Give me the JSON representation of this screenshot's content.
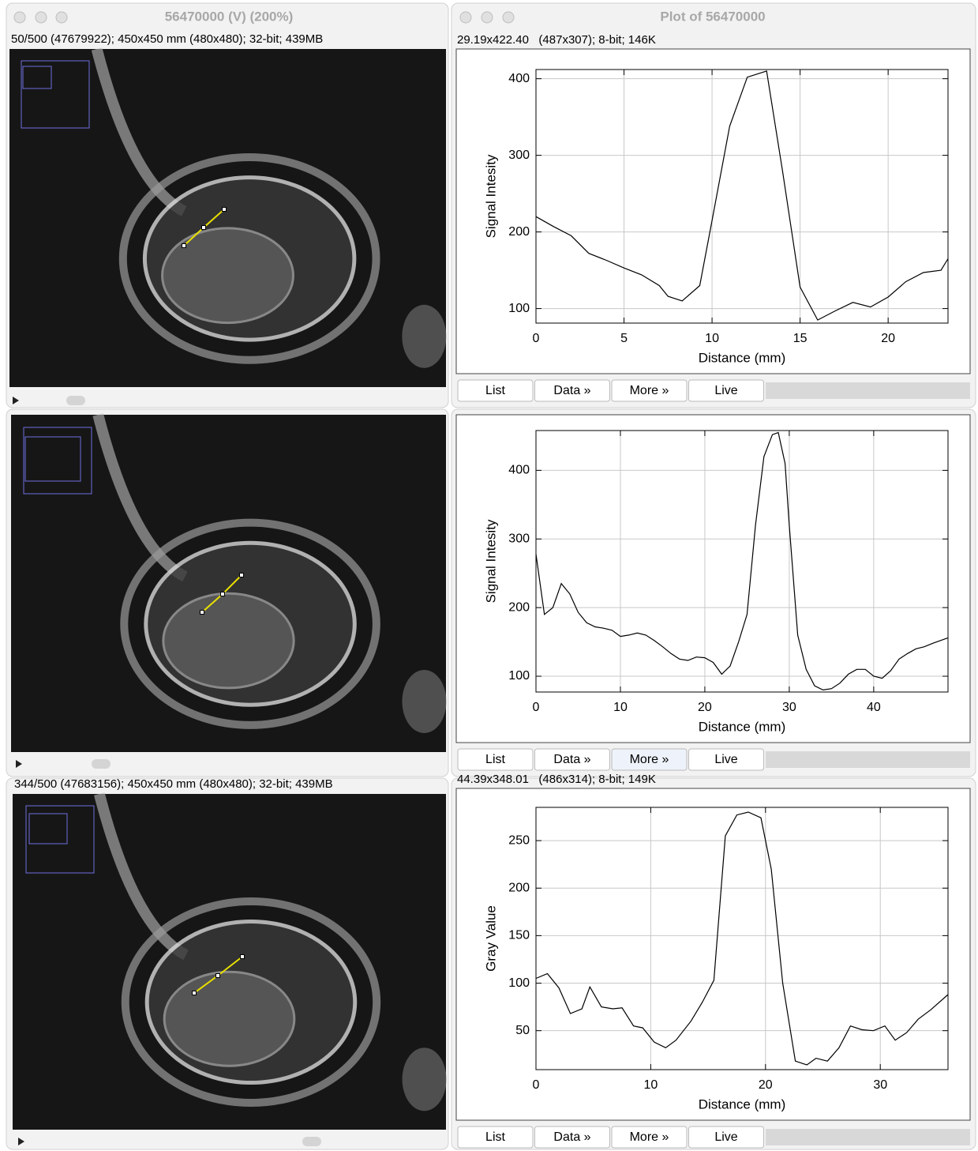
{
  "image_windows": [
    {
      "title": "56470000 (V) (200%)",
      "info": "50/500 (47679922); 450x450 mm (480x480); 32-bit; 439MB"
    },
    {},
    {
      "info": "344/500 (47683156); 450x450 mm (480x480); 32-bit; 439MB"
    }
  ],
  "plot_windows": [
    {
      "title": "Plot of 56470000",
      "info": "29.19x422.40   (487x307); 8-bit; 146K",
      "buttons": [
        "List",
        "Data »",
        "More »",
        "Live"
      ]
    },
    {
      "buttons": [
        "List",
        "Data »",
        "More »",
        "Live"
      ]
    },
    {
      "info": "44.39x348.01   (486x314); 8-bit; 149K",
      "buttons": [
        "List",
        "Data »",
        "More »",
        "Live"
      ]
    }
  ],
  "chart_data": [
    {
      "type": "line",
      "xlabel": "Distance (mm)",
      "ylabel": "Signal Intesity",
      "color": "#000000",
      "grid": true,
      "xlim": [
        0,
        23.4
      ],
      "ylim": [
        81,
        412
      ],
      "xticks": [
        0,
        5,
        10,
        15,
        20
      ],
      "yticks": [
        100,
        200,
        300,
        400
      ],
      "x": [
        0,
        1,
        2,
        3,
        4,
        5,
        6,
        7,
        7.5,
        8.3,
        9.3,
        10,
        11,
        12,
        13.1,
        14,
        15,
        16,
        17,
        18,
        19,
        20,
        21,
        22,
        23,
        23.4
      ],
      "values": [
        220,
        207,
        195,
        172,
        163,
        153,
        144,
        130,
        116,
        110,
        130,
        215,
        338,
        402,
        410,
        280,
        128,
        85,
        97,
        108,
        102,
        115,
        135,
        147,
        150,
        165
      ]
    },
    {
      "type": "line",
      "xlabel": "Distance (mm)",
      "ylabel": "Signal Intesity",
      "color": "#000000",
      "grid": true,
      "xlim": [
        0,
        48.8
      ],
      "ylim": [
        77,
        458
      ],
      "xticks": [
        0,
        10,
        20,
        30,
        40
      ],
      "yticks": [
        100,
        200,
        300,
        400
      ],
      "x": [
        0,
        1,
        2,
        3,
        4,
        5,
        6,
        7,
        8,
        9,
        10,
        11,
        12,
        13,
        14,
        15,
        16,
        17,
        18,
        19,
        20,
        21,
        22,
        23,
        24,
        25,
        26,
        27,
        28,
        28.7,
        29.5,
        30,
        31,
        32,
        33,
        34,
        35,
        36,
        37,
        38,
        39,
        40,
        41,
        42,
        43,
        44,
        45,
        46,
        47,
        48.8
      ],
      "values": [
        278,
        190,
        200,
        235,
        220,
        193,
        178,
        172,
        170,
        167,
        158,
        160,
        163,
        160,
        152,
        143,
        133,
        125,
        123,
        128,
        127,
        120,
        103,
        115,
        150,
        190,
        320,
        420,
        452,
        455,
        410,
        320,
        160,
        110,
        86,
        80,
        82,
        90,
        103,
        110,
        110,
        100,
        97,
        108,
        125,
        133,
        140,
        143,
        148,
        156
      ]
    },
    {
      "type": "line",
      "xlabel": "Distance (mm)",
      "ylabel": "Gray Value",
      "color": "#000000",
      "grid": true,
      "xlim": [
        0,
        35.9
      ],
      "ylim": [
        9,
        285
      ],
      "xticks": [
        0,
        10,
        20,
        30
      ],
      "yticks": [
        50,
        100,
        150,
        200,
        250
      ],
      "x": [
        0,
        1,
        2,
        3,
        4,
        4.7,
        5.7,
        6.7,
        7.5,
        8.5,
        9.3,
        10.3,
        11.3,
        12.2,
        13.5,
        14.5,
        15.5,
        16.5,
        17.5,
        18.5,
        19.6,
        20.5,
        21.5,
        22.6,
        23.6,
        24.4,
        25.4,
        26.4,
        27.4,
        28.4,
        29.4,
        30.4,
        31.3,
        32.3,
        33.3,
        34.4,
        35.9
      ],
      "values": [
        105,
        110,
        95,
        68,
        73,
        96,
        75,
        73,
        74,
        55,
        53,
        38,
        32,
        40,
        60,
        80,
        103,
        255,
        277,
        280,
        274,
        220,
        100,
        18,
        14,
        21,
        18,
        32,
        55,
        51,
        50,
        55,
        40,
        48,
        62,
        72,
        88
      ]
    }
  ]
}
